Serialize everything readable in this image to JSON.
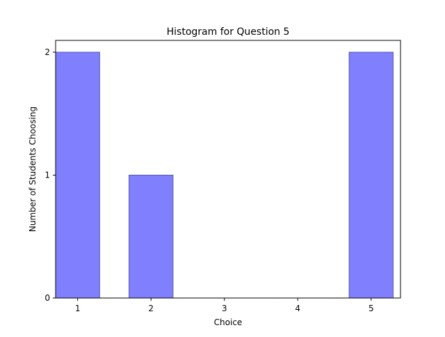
{
  "chart_data": {
    "type": "bar",
    "title": "Histogram for Question 5",
    "xlabel": "Choice",
    "ylabel": "Number of Students Choosing",
    "categories": [
      "1",
      "2",
      "3",
      "4",
      "5"
    ],
    "values": [
      2,
      1,
      0,
      0,
      2
    ],
    "yticks": [
      "0",
      "1",
      "2"
    ],
    "ylim": [
      0,
      2
    ],
    "xlim": [
      0.7,
      5.4
    ],
    "grid": false,
    "bar_color": "#8080ff",
    "bar_edge_color": "#5555aa"
  }
}
